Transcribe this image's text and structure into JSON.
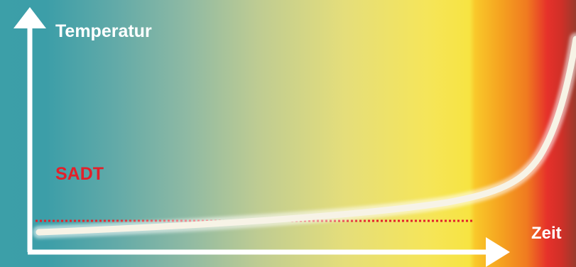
{
  "diagram": {
    "y_axis_label": "Temperatur",
    "x_axis_label": "Zeit",
    "threshold_label": "SADT"
  },
  "colors": {
    "cool": "#3c9fa8",
    "warm": "#f7e44a",
    "hot": "#f39b1c",
    "critical": "#e52b24",
    "dark_red": "#9a3a2c",
    "axis": "#ffffff",
    "curve": "#f7f3e6",
    "threshold_line": "#e3202a"
  }
}
